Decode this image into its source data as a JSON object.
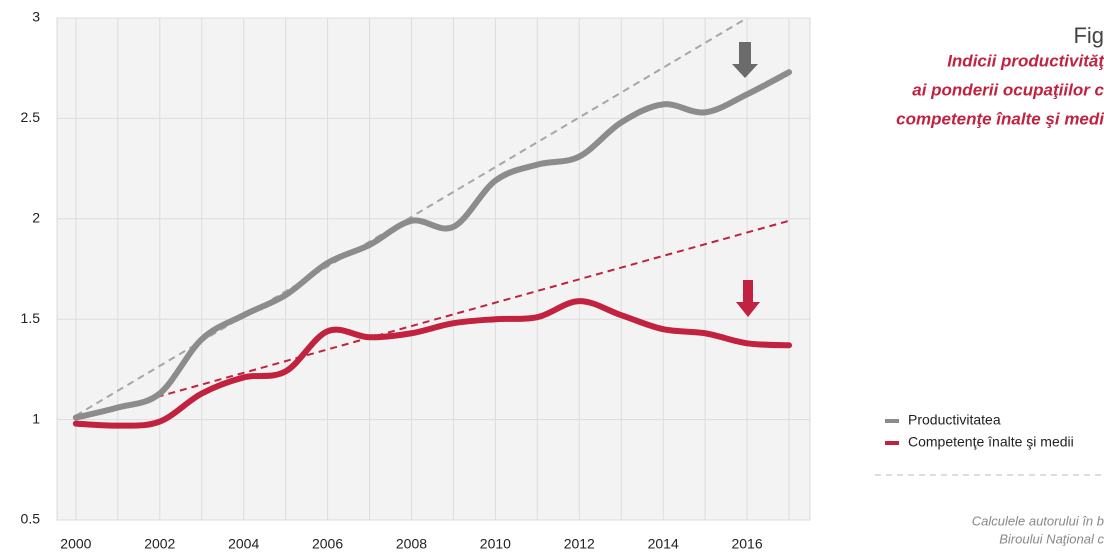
{
  "chart_data": {
    "type": "line",
    "x": [
      2000,
      2001,
      2002,
      2003,
      2004,
      2005,
      2006,
      2007,
      2008,
      2009,
      2010,
      2011,
      2012,
      2013,
      2014,
      2015,
      2016,
      2017
    ],
    "series": [
      {
        "name": "Productivitatea",
        "color": "#8c8c8c",
        "values": [
          1.01,
          1.06,
          1.13,
          1.4,
          1.52,
          1.62,
          1.78,
          1.87,
          1.99,
          1.96,
          2.19,
          2.27,
          2.31,
          2.48,
          2.57,
          2.53,
          2.62,
          2.73
        ]
      },
      {
        "name": "Competenţe înalte şi medii",
        "color": "#c0223f",
        "values": [
          0.98,
          0.97,
          0.99,
          1.13,
          1.21,
          1.24,
          1.44,
          1.41,
          1.43,
          1.48,
          1.5,
          1.51,
          1.59,
          1.52,
          1.45,
          1.43,
          1.38,
          1.37
        ]
      }
    ],
    "trend_lines": [
      {
        "color": "#a6a6a6",
        "x": [
          2000,
          2016
        ],
        "values": [
          1.02,
          3.0
        ]
      },
      {
        "color": "#c0223f",
        "x": [
          2000,
          2017
        ],
        "values": [
          1.0,
          1.99
        ]
      }
    ],
    "xlim": [
      1999.55,
      2017.5
    ],
    "ylim": [
      0.5,
      3
    ],
    "xticks": [
      2000,
      2002,
      2004,
      2006,
      2008,
      2010,
      2012,
      2014,
      2016
    ],
    "xminor": [
      2001,
      2003,
      2005,
      2007,
      2009,
      2011,
      2013,
      2015,
      2017
    ],
    "yticks": [
      0.5,
      1,
      1.5,
      2,
      2.5,
      3
    ],
    "grid": true
  },
  "sidebar": {
    "figure": "Fig",
    "title_lines": [
      "Indicii productivităţ",
      "ai ponderii ocupaţiilor c",
      "competenţe înalte şi medi"
    ],
    "source_lines": [
      "Calculele autorului în b",
      "Biroului Naţional c"
    ]
  }
}
